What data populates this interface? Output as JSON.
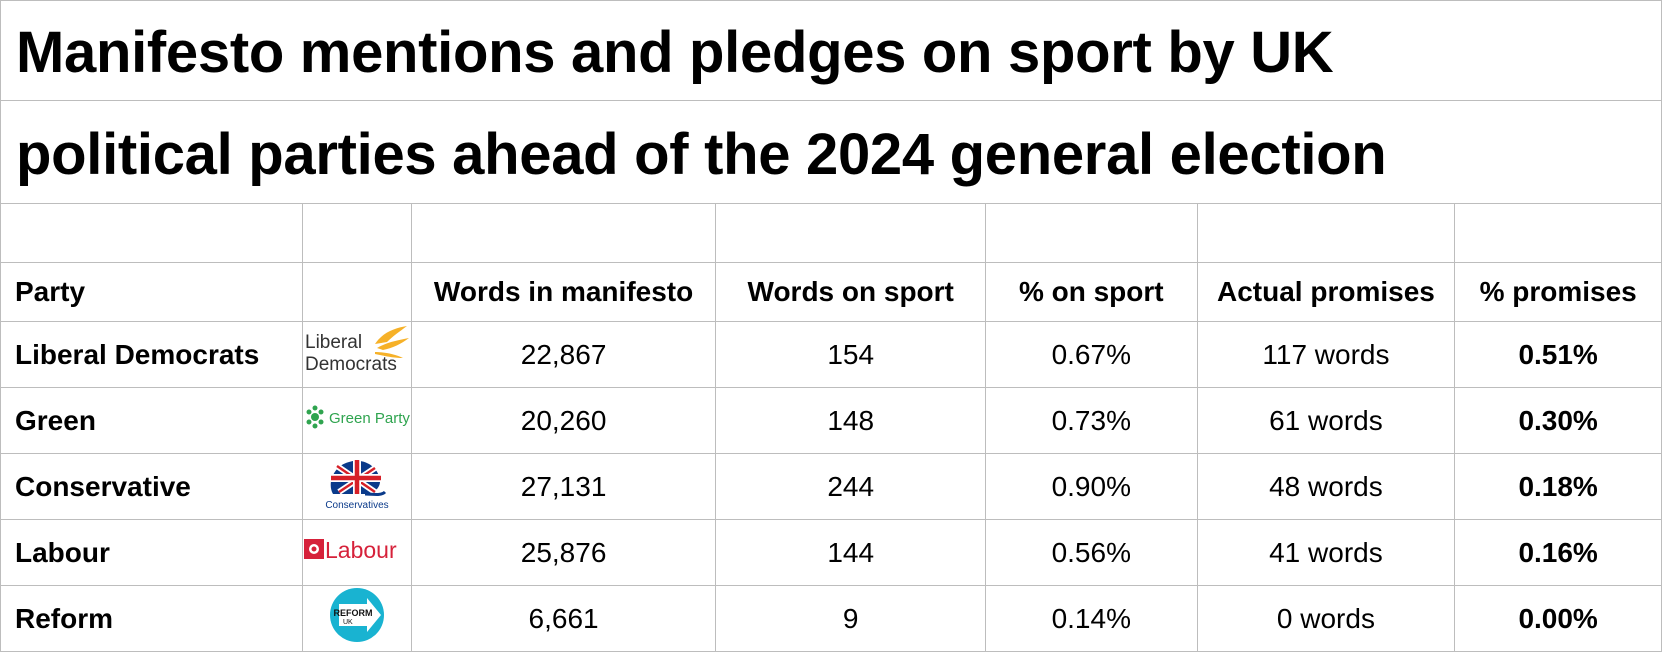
{
  "title": {
    "line1": "Manifesto mentions and pledges on sport by UK",
    "line2": "political  parties ahead of the 2024 general election"
  },
  "chart_data": {
    "type": "table",
    "columns": [
      "Party",
      "",
      "Words in manifesto",
      "Words on sport",
      "% on sport",
      "Actual promises",
      "% promises"
    ],
    "rows": [
      {
        "party": "Liberal Democrats",
        "logo": "liberal-democrats-logo",
        "logo_text": [
          "Liberal",
          "Democrats"
        ],
        "words": "22,867",
        "sport": "154",
        "pct_sport": "0.67%",
        "promises": "117 words",
        "pct_promises": "0.51%"
      },
      {
        "party": "Green",
        "logo": "green-party-logo",
        "logo_text": [
          "Green Party"
        ],
        "words": "20,260",
        "sport": "148",
        "pct_sport": "0.73%",
        "promises": "61 words",
        "pct_promises": "0.30%"
      },
      {
        "party": "Conservative",
        "logo": "conservatives-logo",
        "logo_text": [
          "Conservatives"
        ],
        "words": "27,131",
        "sport": "244",
        "pct_sport": "0.90%",
        "promises": "48 words",
        "pct_promises": "0.18%"
      },
      {
        "party": "Labour",
        "logo": "labour-logo",
        "logo_text": [
          "Labour"
        ],
        "words": "25,876",
        "sport": "144",
        "pct_sport": "0.56%",
        "promises": "41 words",
        "pct_promises": "0.16%"
      },
      {
        "party": "Reform",
        "logo": "reform-uk-logo",
        "logo_text": [
          "REFORM",
          "UK"
        ],
        "words": "6,661",
        "sport": "9",
        "pct_sport": "0.14%",
        "promises": "0 words",
        "pct_promises": "0.00%"
      }
    ]
  },
  "colors": {
    "grid": "#bdbdbd",
    "lib_dem": "#f6b128",
    "green": "#2fa44f",
    "con_blue": "#0a3a8a",
    "con_red": "#d62028",
    "labour": "#d6213a",
    "reform": "#19b3d1"
  }
}
